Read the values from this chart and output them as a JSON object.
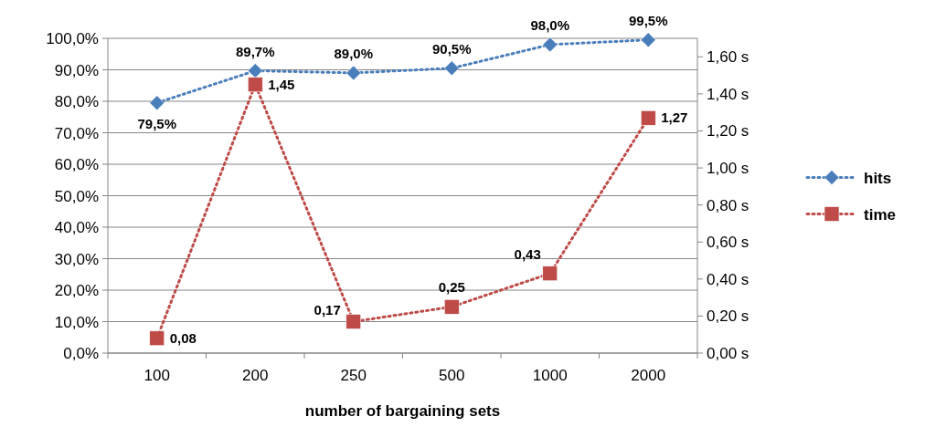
{
  "chart_data": {
    "type": "line",
    "xlabel": "number of bargaining sets",
    "categories": [
      "100",
      "200",
      "250",
      "500",
      "1000",
      "2000"
    ],
    "series": [
      {
        "name": "hits",
        "color": "#4a7ebb",
        "values": [
          79.5,
          89.7,
          89.0,
          90.5,
          98.0,
          99.5
        ],
        "value_labels": [
          "79,5%",
          "89,7%",
          "89,0%",
          "90,5%",
          "98,0%",
          "99,5%"
        ],
        "marker": "diamond",
        "line_style": "dotted"
      },
      {
        "name": "time",
        "color": "#be4b48",
        "axis": "y2",
        "values": [
          0.08,
          1.45,
          0.17,
          0.25,
          0.43,
          1.27
        ],
        "value_labels": [
          "0,08",
          "1,45",
          "0,17",
          "0,25",
          "0,43",
          "1,27"
        ],
        "marker": "square",
        "line_style": "dotted"
      }
    ],
    "ylim": [
      0,
      100
    ],
    "yticks": [
      {
        "value": 0,
        "label": "0,0%"
      },
      {
        "value": 10,
        "label": "10,0%"
      },
      {
        "value": 20,
        "label": "20,0%"
      },
      {
        "value": 30,
        "label": "30,0%"
      },
      {
        "value": 40,
        "label": "40,0%"
      },
      {
        "value": 50,
        "label": "50,0%"
      },
      {
        "value": 60,
        "label": "60,0%"
      },
      {
        "value": 70,
        "label": "70,0%"
      },
      {
        "value": 80,
        "label": "80,0%"
      },
      {
        "value": 90,
        "label": "90,0%"
      },
      {
        "value": 100,
        "label": "100,0%"
      }
    ],
    "y2lim": [
      0,
      1.7
    ],
    "y2ticks": [
      {
        "value": 0,
        "label": "0,00 s"
      },
      {
        "value": 0.2,
        "label": "0,20 s"
      },
      {
        "value": 0.4,
        "label": "0,40 s"
      },
      {
        "value": 0.6,
        "label": "0,60 s"
      },
      {
        "value": 0.8,
        "label": "0,80 s"
      },
      {
        "value": 1.0,
        "label": "1,00 s"
      },
      {
        "value": 1.2,
        "label": "1,20 s"
      },
      {
        "value": 1.4,
        "label": "1,40 s"
      },
      {
        "value": 1.6,
        "label": "1,60 s"
      }
    ],
    "grid": "y",
    "legend": "right"
  }
}
